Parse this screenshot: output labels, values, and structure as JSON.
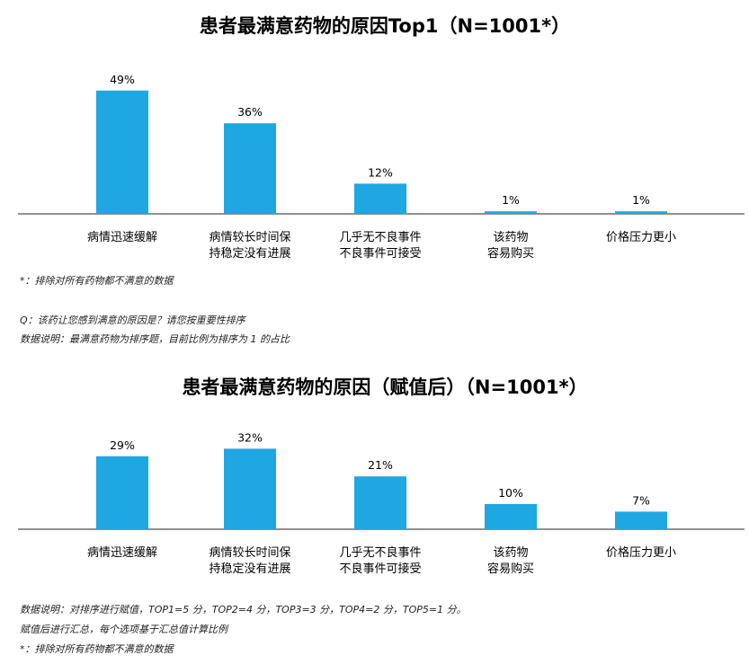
{
  "bar_color": "#1ea7e1",
  "chart_data": [
    {
      "type": "bar",
      "title": "患者最满意药物的原因Top1（N=1001*）",
      "categories": [
        [
          "病情迅速缓解"
        ],
        [
          "病情较长时间保",
          "持稳定没有进展"
        ],
        [
          "几乎无不良事件",
          "不良事件可接受"
        ],
        [
          "该药物",
          "容易购买"
        ],
        [
          "价格压力更小"
        ]
      ],
      "values": [
        49,
        36,
        12,
        1,
        1
      ],
      "value_labels": [
        "49%",
        "36%",
        "12%",
        "1%",
        "1%"
      ],
      "unit": "%",
      "ylim": [
        0,
        50
      ],
      "grid": false,
      "notes": [
        "*：排除对所有药物都不满意的数据",
        "Q：该药让您感到满意的原因是？请您按重要性排序",
        "数据说明：最满意药物为排序题，目前比例为排序为 1 的占比"
      ]
    },
    {
      "type": "bar",
      "title": "患者最满意药物的原因（赋值后）（N=1001*）",
      "categories": [
        [
          "病情迅速缓解"
        ],
        [
          "病情较长时间保",
          "持稳定没有进展"
        ],
        [
          "几乎无不良事件",
          "不良事件可接受"
        ],
        [
          "该药物",
          "容易购买"
        ],
        [
          "价格压力更小"
        ]
      ],
      "values": [
        29,
        32,
        21,
        10,
        7
      ],
      "value_labels": [
        "29%",
        "32%",
        "21%",
        "10%",
        "7%"
      ],
      "unit": "%",
      "ylim": [
        0,
        50
      ],
      "grid": false,
      "notes": [
        "数据说明：对排序进行赋值，TOP1=5 分，TOP2=4 分，TOP3=3 分，TOP4=2 分，TOP5=1 分。",
        "赋值后进行汇总，每个选项基于汇总值计算比例",
        "*：排除对所有药物都不满意的数据"
      ]
    }
  ]
}
